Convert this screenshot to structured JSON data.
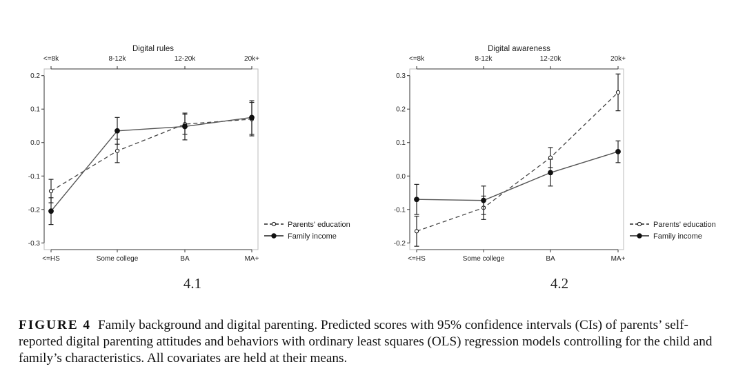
{
  "chart_data": [
    {
      "type": "line",
      "title": "Digital rules",
      "panel_label": "4.1",
      "bottom_categories": [
        "<=HS",
        "Some college",
        "BA",
        "MA+"
      ],
      "top_categories": [
        "<=8k",
        "8-12k",
        "12-20k",
        "20k+"
      ],
      "ylim": [
        -0.32,
        0.22
      ],
      "yticks": [
        "0.2",
        "0.1",
        "0.0",
        "-0.1",
        "-0.2",
        "-0.3"
      ],
      "ytick_values": [
        0.2,
        0.1,
        0.0,
        -0.1,
        -0.2,
        -0.3
      ],
      "legend_position": "bottom-right-outside",
      "series": [
        {
          "name": "Parents' education",
          "style": "dashed-hollow",
          "values": [
            -0.145,
            -0.025,
            0.055,
            0.07
          ],
          "ci_low": [
            -0.18,
            -0.06,
            0.025,
            0.02
          ],
          "ci_high": [
            -0.11,
            0.01,
            0.085,
            0.12
          ]
        },
        {
          "name": "Family income",
          "style": "solid-filled",
          "values": [
            -0.205,
            0.035,
            0.048,
            0.075
          ],
          "ci_low": [
            -0.245,
            -0.005,
            0.008,
            0.025
          ],
          "ci_high": [
            -0.165,
            0.075,
            0.088,
            0.125
          ]
        }
      ]
    },
    {
      "type": "line",
      "title": "Digital awareness",
      "panel_label": "4.2",
      "bottom_categories": [
        "<=HS",
        "Some college",
        "BA",
        "MA+"
      ],
      "top_categories": [
        "<=8k",
        "8-12k",
        "12-20k",
        "20k+"
      ],
      "ylim": [
        -0.22,
        0.32
      ],
      "yticks": [
        "0.3",
        "0.2",
        "0.1",
        "0.0",
        "-0.1",
        "-0.2"
      ],
      "ytick_values": [
        0.3,
        0.2,
        0.1,
        0.0,
        -0.1,
        -0.2
      ],
      "legend_position": "bottom-right-outside",
      "series": [
        {
          "name": "Parents' education",
          "style": "dashed-hollow",
          "values": [
            -0.165,
            -0.095,
            0.055,
            0.25
          ],
          "ci_low": [
            -0.21,
            -0.13,
            0.025,
            0.195
          ],
          "ci_high": [
            -0.12,
            -0.06,
            0.085,
            0.305
          ]
        },
        {
          "name": "Family income",
          "style": "solid-filled",
          "values": [
            -0.07,
            -0.073,
            0.01,
            0.073
          ],
          "ci_low": [
            -0.115,
            -0.115,
            -0.03,
            0.04
          ],
          "ci_high": [
            -0.025,
            -0.03,
            0.05,
            0.105
          ]
        }
      ]
    }
  ],
  "caption": {
    "label": "FIGURE 4",
    "text": "Family background and digital parenting. Predicted scores with 95% confidence intervals (CIs) of parents’ self-reported digital parenting attitudes and behaviors with ordinary least squares (OLS) regression models controlling for the child and family’s characteristics. All covariates are held at their means."
  }
}
